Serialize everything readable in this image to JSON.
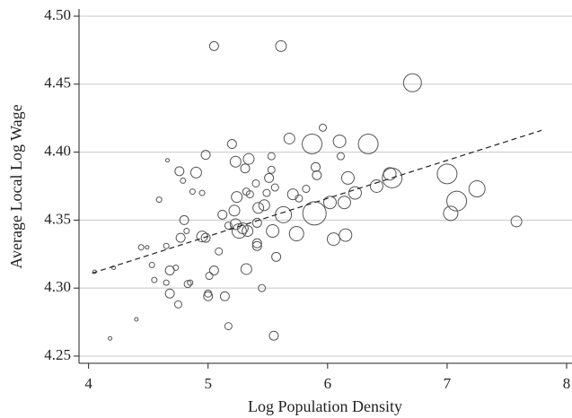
{
  "chart_data": {
    "type": "bubble",
    "x_label": "Log Population Density",
    "y_label": "Average Local Log Wage",
    "xlim": [
      3.92,
      8.045
    ],
    "xticks": [
      4,
      5,
      6,
      7,
      8
    ],
    "ylim": [
      4.2447,
      4.5053
    ],
    "yticks": [
      4.25,
      {
        "value": 4.3,
        "label": "4.30"
      },
      4.35,
      {
        "value": 4.4,
        "label": "4.40"
      },
      4.45,
      {
        "value": 4.5,
        "label": "4.50"
      }
    ],
    "grid": true,
    "color": "#555555",
    "x": [
      4.05,
      4.21,
      4.18,
      4.4,
      4.44,
      4.49,
      4.53,
      4.55,
      4.59,
      4.65,
      4.65,
      4.68,
      4.66,
      4.68,
      4.76,
      4.79,
      4.73,
      4.77,
      4.8,
      4.82,
      4.75,
      4.83,
      4.85,
      4.87,
      4.9,
      4.95,
      4.95,
      4.98,
      4.98,
      5.01,
      5.0,
      5.0,
      5.05,
      5.05,
      5.09,
      5.12,
      5.14,
      5.17,
      5.17,
      5.2,
      5.23,
      5.24,
      5.22,
      5.23,
      5.26,
      5.29,
      5.31,
      5.32,
      5.35,
      5.33,
      5.32,
      5.34,
      5.4,
      5.41,
      5.42,
      5.41,
      5.41,
      5.45,
      5.47,
      5.49,
      5.51,
      5.53,
      5.53,
      5.54,
      5.55,
      5.56,
      5.57,
      5.61,
      5.63,
      5.68,
      5.71,
      5.74,
      5.76,
      5.82,
      5.87,
      5.89,
      5.9,
      5.91,
      5.96,
      6.02,
      6.05,
      6.1,
      6.11,
      6.14,
      6.15,
      6.17,
      6.23,
      6.34,
      6.41,
      6.52,
      6.54,
      6.71,
      7.0,
      7.03,
      7.08,
      7.25,
      7.58
    ],
    "values": [
      4.312,
      4.315,
      4.263,
      4.277,
      4.33,
      4.33,
      4.317,
      4.306,
      4.365,
      4.331,
      4.304,
      4.313,
      4.394,
      4.296,
      4.386,
      4.379,
      4.315,
      4.337,
      4.35,
      4.342,
      4.288,
      4.303,
      4.304,
      4.371,
      4.385,
      4.37,
      4.338,
      4.337,
      4.398,
      4.309,
      4.296,
      4.294,
      4.478,
      4.313,
      4.327,
      4.354,
      4.294,
      4.272,
      4.346,
      4.406,
      4.393,
      4.367,
      4.357,
      4.347,
      4.342,
      4.344,
      4.388,
      4.371,
      4.369,
      4.342,
      4.314,
      4.395,
      4.377,
      4.348,
      4.359,
      4.333,
      4.331,
      4.3,
      4.361,
      4.37,
      4.381,
      4.387,
      4.397,
      4.342,
      4.265,
      4.374,
      4.323,
      4.478,
      4.354,
      4.41,
      4.369,
      4.34,
      4.366,
      4.373,
      4.406,
      4.355,
      4.389,
      4.383,
      4.418,
      4.363,
      4.336,
      4.408,
      4.397,
      4.363,
      4.339,
      4.381,
      4.37,
      4.406,
      4.375,
      4.384,
      4.381,
      4.451,
      4.384,
      4.355,
      4.364,
      4.373,
      4.349
    ],
    "sizes": [
      2,
      2,
      2,
      2,
      3,
      2,
      3,
      3,
      3,
      3,
      3,
      5,
      2,
      5,
      5,
      3,
      3,
      5,
      5,
      3,
      4,
      4,
      3,
      3,
      6,
      3,
      6,
      5,
      5,
      4,
      4,
      5,
      5,
      5,
      4,
      5,
      5,
      4,
      4,
      5,
      6,
      6,
      6,
      6,
      8,
      6,
      5,
      4,
      4,
      6,
      6,
      6,
      4,
      5,
      6,
      5,
      5,
      4,
      6,
      4,
      5,
      4,
      4,
      7,
      5,
      4,
      5,
      6,
      9,
      6,
      6,
      8,
      4,
      4,
      11,
      13,
      5,
      5,
      4,
      7,
      7,
      7,
      4,
      7,
      7,
      7,
      7,
      11,
      7,
      7,
      11,
      10,
      11,
      8,
      11,
      9,
      6
    ],
    "fit_line": {
      "x": [
        4.03,
        7.79
      ],
      "values": [
        4.311,
        4.416
      ]
    }
  }
}
